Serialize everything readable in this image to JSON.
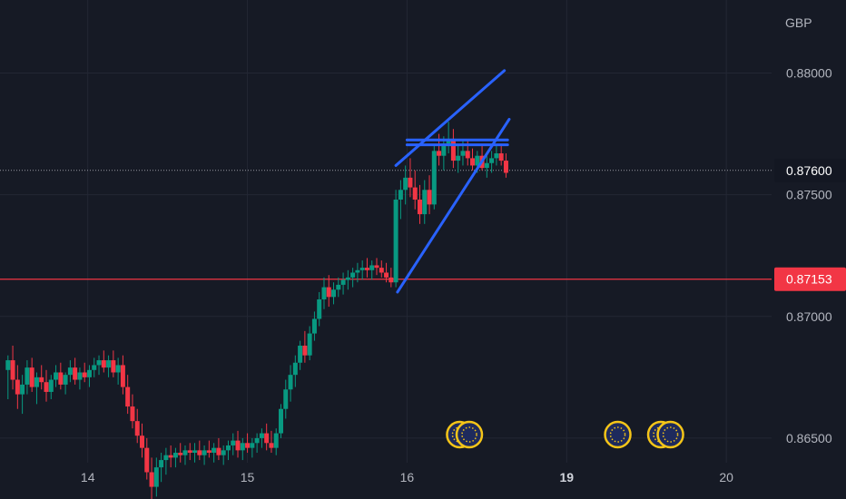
{
  "chart_data": {
    "type": "candlestick",
    "currency_label": "GBP",
    "ylim": [
      0.8625,
      0.883
    ],
    "y_ticks": [
      {
        "value": 0.88,
        "label": "0.88000"
      },
      {
        "value": 0.875,
        "label": "0.87500"
      },
      {
        "value": 0.87,
        "label": "0.87000"
      },
      {
        "value": 0.865,
        "label": "0.86500"
      }
    ],
    "x_ticks": [
      {
        "t": 14,
        "label": "14",
        "bold": false
      },
      {
        "t": 15,
        "label": "15",
        "bold": false
      },
      {
        "t": 16,
        "label": "16",
        "bold": false
      },
      {
        "t": 17,
        "label": "19",
        "bold": true
      },
      {
        "t": 18,
        "label": "20",
        "bold": false
      }
    ],
    "xlim": [
      13.45,
      18.75
    ],
    "current_price": {
      "value": 0.876,
      "label": "0.87600",
      "color": "#131722",
      "text_color": "#ffffff"
    },
    "horizontal_line": {
      "value": 0.87153,
      "label": "0.87153",
      "color": "#f23645"
    },
    "colors": {
      "up": "#089981",
      "down": "#f23645",
      "drawing": "#2962ff",
      "grid": "#232734"
    },
    "candles": [
      [
        13.5,
        0.8678,
        0.8684,
        0.8666,
        0.8682
      ],
      [
        13.53,
        0.8682,
        0.8688,
        0.867,
        0.8674
      ],
      [
        13.56,
        0.8674,
        0.868,
        0.8662,
        0.8668
      ],
      [
        13.59,
        0.8668,
        0.8676,
        0.866,
        0.8672
      ],
      [
        13.62,
        0.8672,
        0.8682,
        0.8668,
        0.8679
      ],
      [
        13.65,
        0.8679,
        0.8683,
        0.8669,
        0.8671
      ],
      [
        13.68,
        0.8671,
        0.8677,
        0.8664,
        0.8675
      ],
      [
        13.71,
        0.8675,
        0.868,
        0.867,
        0.8673
      ],
      [
        13.74,
        0.8673,
        0.8678,
        0.8665,
        0.8669
      ],
      [
        13.77,
        0.8669,
        0.8676,
        0.8666,
        0.8674
      ],
      [
        13.8,
        0.8674,
        0.868,
        0.8671,
        0.8677
      ],
      [
        13.83,
        0.8677,
        0.8681,
        0.867,
        0.8672
      ],
      [
        13.86,
        0.8672,
        0.8677,
        0.8668,
        0.8676
      ],
      [
        13.89,
        0.8676,
        0.8682,
        0.8673,
        0.8679
      ],
      [
        13.92,
        0.8679,
        0.8683,
        0.8672,
        0.8674
      ],
      [
        13.95,
        0.8674,
        0.8679,
        0.867,
        0.8677
      ],
      [
        13.98,
        0.8677,
        0.8681,
        0.8673,
        0.8675
      ],
      [
        14.01,
        0.8675,
        0.868,
        0.8671,
        0.8678
      ],
      [
        14.04,
        0.8678,
        0.8683,
        0.8675,
        0.868
      ],
      [
        14.07,
        0.868,
        0.8684,
        0.8676,
        0.8682
      ],
      [
        14.1,
        0.8682,
        0.8686,
        0.8677,
        0.8679
      ],
      [
        14.13,
        0.8679,
        0.8684,
        0.8675,
        0.8682
      ],
      [
        14.16,
        0.8682,
        0.8686,
        0.8675,
        0.8677
      ],
      [
        14.19,
        0.8677,
        0.8683,
        0.8672,
        0.868
      ],
      [
        14.22,
        0.868,
        0.8684,
        0.8668,
        0.8671
      ],
      [
        14.25,
        0.8671,
        0.8676,
        0.866,
        0.8663
      ],
      [
        14.28,
        0.8663,
        0.8668,
        0.8654,
        0.8657
      ],
      [
        14.31,
        0.8657,
        0.8662,
        0.8648,
        0.8651
      ],
      [
        14.34,
        0.8651,
        0.8656,
        0.8642,
        0.8646
      ],
      [
        14.37,
        0.8646,
        0.865,
        0.8633,
        0.8636
      ],
      [
        14.4,
        0.8636,
        0.8642,
        0.8622,
        0.863
      ],
      [
        14.43,
        0.863,
        0.8642,
        0.8626,
        0.8638
      ],
      [
        14.46,
        0.8638,
        0.8644,
        0.8632,
        0.8641
      ],
      [
        14.49,
        0.8641,
        0.8646,
        0.8635,
        0.8643
      ],
      [
        14.52,
        0.8643,
        0.8647,
        0.8638,
        0.8642
      ],
      [
        14.55,
        0.8642,
        0.8646,
        0.8638,
        0.8644
      ],
      [
        14.58,
        0.8644,
        0.8648,
        0.864,
        0.8643
      ],
      [
        14.61,
        0.8643,
        0.8647,
        0.8639,
        0.8645
      ],
      [
        14.64,
        0.8645,
        0.8648,
        0.8641,
        0.8644
      ],
      [
        14.67,
        0.8644,
        0.8648,
        0.864,
        0.8645
      ],
      [
        14.7,
        0.8645,
        0.8649,
        0.8641,
        0.8643
      ],
      [
        14.73,
        0.8643,
        0.8647,
        0.8639,
        0.8645
      ],
      [
        14.76,
        0.8645,
        0.8649,
        0.8642,
        0.8644
      ],
      [
        14.79,
        0.8644,
        0.8648,
        0.864,
        0.8646
      ],
      [
        14.82,
        0.8646,
        0.865,
        0.8641,
        0.8643
      ],
      [
        14.85,
        0.8643,
        0.8647,
        0.8639,
        0.8645
      ],
      [
        14.88,
        0.8645,
        0.8649,
        0.8641,
        0.8647
      ],
      [
        14.91,
        0.8647,
        0.8652,
        0.8643,
        0.8649
      ],
      [
        14.94,
        0.8649,
        0.8653,
        0.8642,
        0.8645
      ],
      [
        14.97,
        0.8645,
        0.865,
        0.8641,
        0.8648
      ],
      [
        15.0,
        0.8648,
        0.8652,
        0.8644,
        0.8646
      ],
      [
        15.03,
        0.8646,
        0.865,
        0.8642,
        0.8648
      ],
      [
        15.06,
        0.8648,
        0.8652,
        0.8644,
        0.865
      ],
      [
        15.09,
        0.865,
        0.8654,
        0.8646,
        0.8652
      ],
      [
        15.12,
        0.8652,
        0.8656,
        0.8645,
        0.8648
      ],
      [
        15.15,
        0.8648,
        0.8653,
        0.8644,
        0.8646
      ],
      [
        15.18,
        0.8646,
        0.8654,
        0.8643,
        0.8652
      ],
      [
        15.21,
        0.8652,
        0.8664,
        0.865,
        0.8662
      ],
      [
        15.24,
        0.8662,
        0.8674,
        0.8658,
        0.867
      ],
      [
        15.27,
        0.867,
        0.868,
        0.8665,
        0.8676
      ],
      [
        15.3,
        0.8676,
        0.8684,
        0.8671,
        0.8681
      ],
      [
        15.33,
        0.8681,
        0.869,
        0.8678,
        0.8688
      ],
      [
        15.36,
        0.8688,
        0.8694,
        0.8681,
        0.8684
      ],
      [
        15.39,
        0.8684,
        0.8696,
        0.8682,
        0.8693
      ],
      [
        15.42,
        0.8693,
        0.8702,
        0.869,
        0.8699
      ],
      [
        15.45,
        0.8699,
        0.871,
        0.8696,
        0.8707
      ],
      [
        15.48,
        0.8707,
        0.8716,
        0.8703,
        0.8712
      ],
      [
        15.51,
        0.8712,
        0.8717,
        0.8704,
        0.8708
      ],
      [
        15.54,
        0.8708,
        0.8714,
        0.8705,
        0.8711
      ],
      [
        15.57,
        0.8711,
        0.8716,
        0.8708,
        0.8713
      ],
      [
        15.6,
        0.8713,
        0.8718,
        0.8709,
        0.8715
      ],
      [
        15.63,
        0.8715,
        0.8719,
        0.8711,
        0.8716
      ],
      [
        15.66,
        0.8716,
        0.872,
        0.8712,
        0.8718
      ],
      [
        15.69,
        0.8718,
        0.8722,
        0.8714,
        0.8719
      ],
      [
        15.72,
        0.8719,
        0.8723,
        0.8715,
        0.872
      ],
      [
        15.75,
        0.872,
        0.8724,
        0.8716,
        0.8719
      ],
      [
        15.78,
        0.8719,
        0.8723,
        0.8715,
        0.8721
      ],
      [
        15.81,
        0.8721,
        0.8724,
        0.8717,
        0.872
      ],
      [
        15.84,
        0.872,
        0.8723,
        0.8716,
        0.8718
      ],
      [
        15.87,
        0.8718,
        0.8722,
        0.8714,
        0.8716
      ],
      [
        15.9,
        0.8716,
        0.872,
        0.8712,
        0.8714
      ],
      [
        15.93,
        0.8714,
        0.8752,
        0.8712,
        0.8748
      ],
      [
        15.96,
        0.8748,
        0.8756,
        0.874,
        0.8752
      ],
      [
        15.99,
        0.8752,
        0.8762,
        0.8746,
        0.8757
      ],
      [
        16.02,
        0.8757,
        0.8765,
        0.8749,
        0.8753
      ],
      [
        16.05,
        0.8753,
        0.876,
        0.8744,
        0.8748
      ],
      [
        16.08,
        0.8748,
        0.8754,
        0.8738,
        0.8742
      ],
      [
        16.11,
        0.8742,
        0.8756,
        0.8738,
        0.8752
      ],
      [
        16.14,
        0.8752,
        0.8758,
        0.8742,
        0.8746
      ],
      [
        16.17,
        0.8746,
        0.877,
        0.8744,
        0.8768
      ],
      [
        16.2,
        0.8768,
        0.8775,
        0.8762,
        0.8766
      ],
      [
        16.23,
        0.8766,
        0.8774,
        0.876,
        0.8771
      ],
      [
        16.26,
        0.8771,
        0.878,
        0.8767,
        0.8773
      ],
      [
        16.29,
        0.8773,
        0.8777,
        0.8761,
        0.8764
      ],
      [
        16.32,
        0.8764,
        0.877,
        0.8759,
        0.8766
      ],
      [
        16.35,
        0.8766,
        0.8772,
        0.8762,
        0.8768
      ],
      [
        16.38,
        0.8768,
        0.8772,
        0.8762,
        0.8765
      ],
      [
        16.41,
        0.8765,
        0.8769,
        0.876,
        0.8762
      ],
      [
        16.44,
        0.8762,
        0.8768,
        0.8759,
        0.8766
      ],
      [
        16.47,
        0.8766,
        0.877,
        0.876,
        0.8761
      ],
      [
        16.5,
        0.8761,
        0.8766,
        0.8757,
        0.8763
      ],
      [
        16.53,
        0.8763,
        0.8768,
        0.8759,
        0.8765
      ],
      [
        16.56,
        0.8765,
        0.877,
        0.8762,
        0.8767
      ],
      [
        16.59,
        0.8767,
        0.877,
        0.8762,
        0.8764
      ],
      [
        16.62,
        0.8764,
        0.8767,
        0.8757,
        0.8759
      ]
    ],
    "drawings": [
      {
        "name": "upper-trendline",
        "points": [
          [
            15.93,
            0.8762
          ],
          [
            16.61,
            0.8801
          ]
        ]
      },
      {
        "name": "lower-trendline",
        "points": [
          [
            15.94,
            0.871
          ],
          [
            16.64,
            0.8781
          ]
        ]
      },
      {
        "name": "resistance-line-a",
        "points": [
          [
            16.0,
            0.87705
          ],
          [
            16.63,
            0.87705
          ]
        ]
      },
      {
        "name": "resistance-line-b",
        "points": [
          [
            16.0,
            0.87725
          ],
          [
            16.63,
            0.87725
          ]
        ]
      }
    ],
    "event_markers": [
      16.33,
      16.39,
      17.32,
      17.59,
      17.65
    ]
  }
}
